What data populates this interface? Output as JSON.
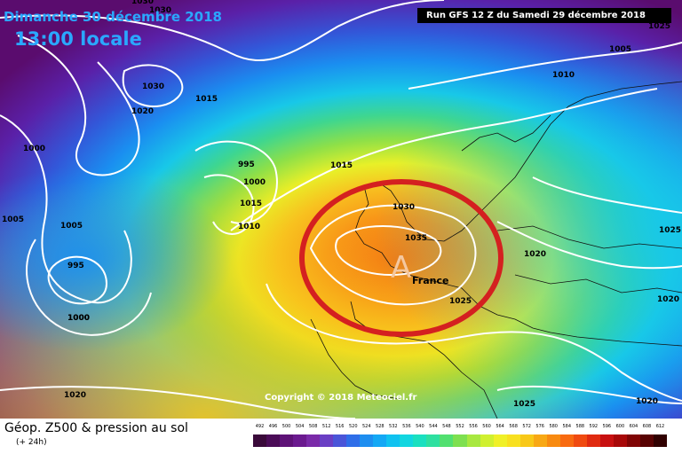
{
  "header": {
    "date": "Dimanche 30 décembre 2018",
    "time": "13:00 locale",
    "run": "Run GFS 12 Z du Samedi 29 décembre 2018"
  },
  "map": {
    "anticyclone_symbol": "A",
    "country_label": "France",
    "highlight_circle_color": "#d42020",
    "isobars": [
      "1030",
      "1030",
      "1025",
      "1005",
      "1010",
      "1000",
      "1030",
      "1015",
      "1020",
      "1000",
      "995",
      "1015",
      "1000",
      "1005",
      "1010",
      "1015",
      "1030",
      "1035",
      "1025",
      "1020",
      "1025",
      "1020",
      "1005",
      "995",
      "1000",
      "1020",
      "1025",
      "1020"
    ]
  },
  "copyright": "Copyright © 2018 Meteociel.fr",
  "footer": {
    "title": "Géop. Z500 & pression au sol",
    "subtitle": "(+ 24h)",
    "scale_values": [
      "492",
      "496",
      "500",
      "504",
      "508",
      "512",
      "516",
      "520",
      "524",
      "528",
      "532",
      "536",
      "540",
      "544",
      "548",
      "552",
      "556",
      "560",
      "564",
      "568",
      "572",
      "576",
      "580",
      "584",
      "588",
      "592",
      "596",
      "600",
      "604",
      "608",
      "612"
    ],
    "scale_colors": [
      "#3a0a3a",
      "#4b0c57",
      "#5e1277",
      "#6b1a8f",
      "#7a2aa8",
      "#6a3fc4",
      "#4a55d8",
      "#2f6ee8",
      "#1e8ef0",
      "#14a8f5",
      "#10c2f0",
      "#12d6e0",
      "#1ae0c0",
      "#2ee0a0",
      "#52e070",
      "#7ee050",
      "#a8e840",
      "#d0f030",
      "#f0f028",
      "#f8e020",
      "#f8c818",
      "#f8a814",
      "#f88a10",
      "#f86a10",
      "#f04a10",
      "#e02a10",
      "#c81010",
      "#a80808",
      "#800404",
      "#580202",
      "#300000"
    ]
  }
}
